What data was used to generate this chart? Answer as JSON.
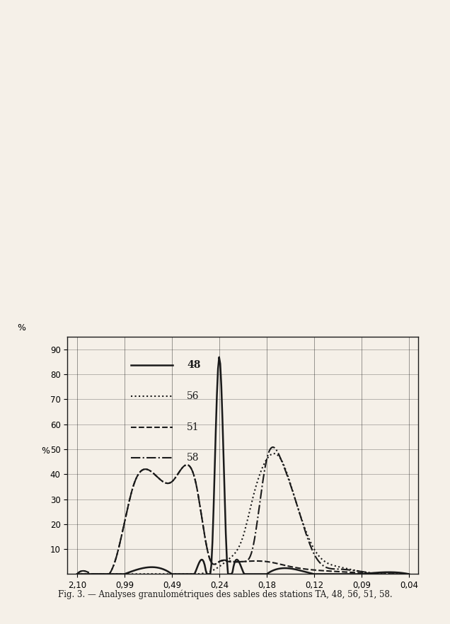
{
  "title": "Fig. 3. — Analyses granulométriques des sables des stations TA, 48, 56, 51, 58.",
  "ylabel": "%",
  "background_color": "#f5f0e8",
  "x_positions": [
    0,
    1,
    2,
    3,
    4,
    5,
    6,
    7
  ],
  "x_labels": [
    "2,10",
    "0,99",
    "0,49",
    "0,24",
    "0,18",
    "0,12",
    "0,09",
    "0,04"
  ],
  "yticks": [
    10,
    20,
    30,
    40,
    50,
    60,
    70,
    80,
    90
  ],
  "ylim": [
    0,
    95
  ],
  "xlim": [
    -0.2,
    7.2
  ],
  "curve_48": {
    "label": "48",
    "style": "solid",
    "color": "#1a1a1a",
    "linewidth": 1.8,
    "x": [
      0,
      1,
      2,
      3,
      3.5,
      4,
      4.5,
      5,
      5.5,
      6,
      7
    ],
    "y": [
      0,
      0,
      2,
      5,
      87,
      10,
      2,
      1,
      0,
      0,
      0
    ]
  },
  "curve_56": {
    "label": "56",
    "style": "dotted",
    "color": "#1a1a1a",
    "linewidth": 1.5,
    "x": [
      0,
      1,
      2,
      3,
      3.3,
      3.6,
      4,
      4.5,
      5,
      5.5,
      6,
      7
    ],
    "y": [
      0,
      0,
      2,
      4,
      10,
      46,
      46,
      46,
      10,
      3,
      1,
      0
    ]
  },
  "curve_51": {
    "label": "51",
    "style": "dashed",
    "color": "#1a1a1a",
    "linewidth": 1.5,
    "x": [
      0,
      0.5,
      1,
      1.5,
      2,
      2.5,
      3,
      3.5,
      4,
      4.5,
      5,
      5.5,
      6,
      7
    ],
    "y": [
      0,
      5,
      35,
      37,
      37,
      37,
      37,
      5,
      5,
      5,
      5,
      2,
      1,
      0
    ]
  },
  "curve_58": {
    "label": "58",
    "style": "dashdot",
    "color": "#1a1a1a",
    "linewidth": 1.5,
    "x": [
      0,
      0.5,
      1,
      1.5,
      2,
      2.5,
      3,
      3.3,
      3.6,
      4,
      4.5,
      5,
      5.5,
      6,
      7
    ],
    "y": [
      0,
      4,
      35,
      37,
      37,
      37,
      5,
      5,
      5,
      46,
      46,
      10,
      3,
      1,
      0
    ]
  }
}
